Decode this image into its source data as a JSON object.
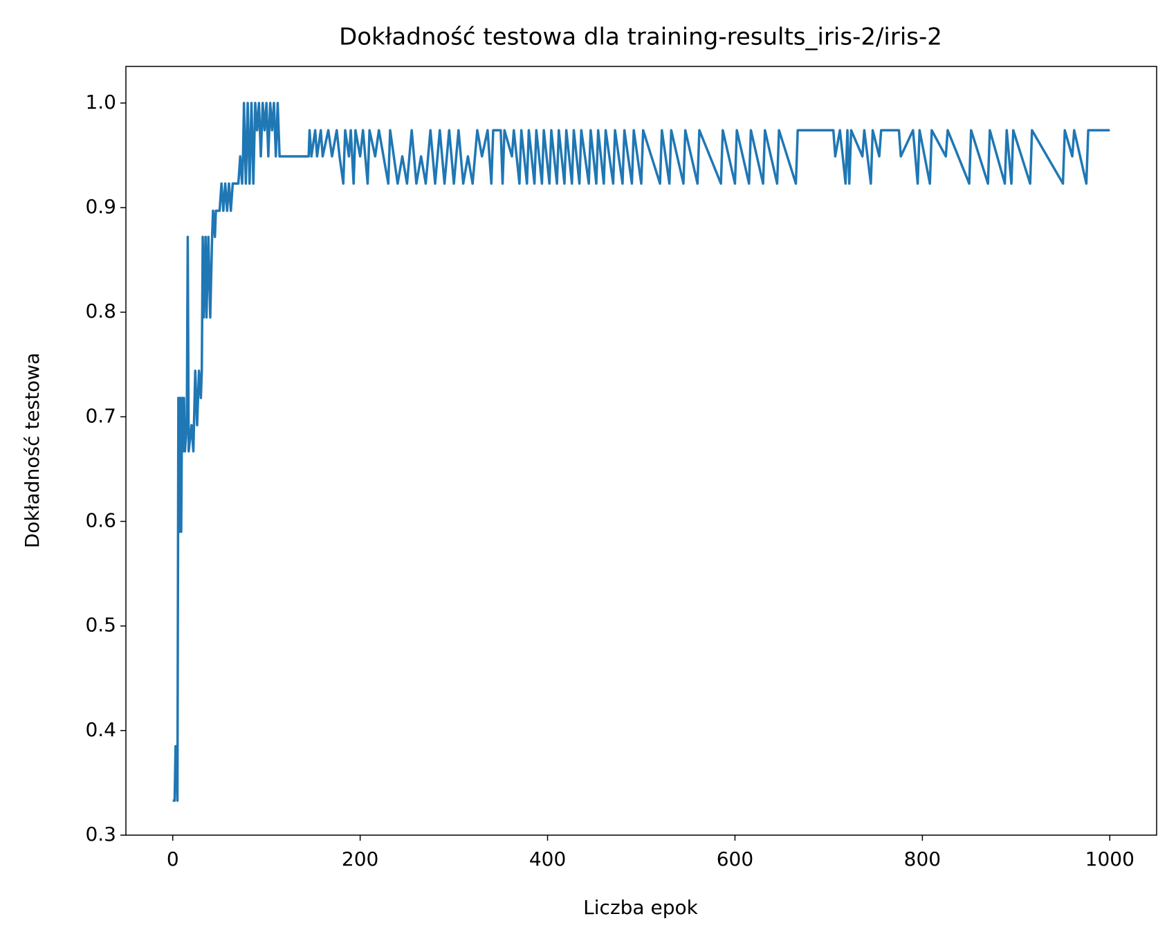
{
  "chart_data": {
    "type": "line",
    "title": "Dokładność testowa dla training-results_iris-2/iris-2",
    "x_label": "Liczba epok",
    "y_label": "Dokładność testowa",
    "xlim": [
      -50,
      1050
    ],
    "ylim": [
      0.3,
      1.035
    ],
    "xticks": [
      0,
      200,
      400,
      600,
      800,
      1000
    ],
    "yticks": [
      0.3,
      0.4,
      0.5,
      0.6,
      0.7,
      0.8,
      0.9,
      {
        "value": 1,
        "label": "1.0"
      }
    ],
    "grid": false,
    "series": [
      {
        "color": "#1f77b4",
        "x": [
          0,
          2,
          3,
          4,
          5,
          6,
          7,
          8,
          9,
          10,
          11,
          12,
          13,
          15,
          16,
          17,
          20,
          22,
          24,
          26,
          28,
          30,
          31,
          32,
          33,
          35,
          36,
          38,
          40,
          42,
          43,
          45,
          46,
          50,
          52,
          54,
          56,
          58,
          60,
          62,
          64,
          70,
          72,
          74,
          75,
          76,
          78,
          80,
          82,
          84,
          86,
          88,
          90,
          92,
          94,
          96,
          98,
          100,
          102,
          104,
          106,
          108,
          110,
          112,
          114,
          145,
          146,
          148,
          152,
          154,
          158,
          160,
          166,
          170,
          175,
          178,
          182,
          184,
          188,
          190,
          193,
          195,
          200,
          203,
          208,
          210,
          216,
          220,
          230,
          232,
          240,
          245,
          250,
          255,
          260,
          265,
          270,
          275,
          280,
          285,
          290,
          295,
          300,
          305,
          310,
          315,
          320,
          325,
          330,
          336,
          340,
          342,
          350,
          352,
          354,
          362,
          364,
          370,
          372,
          378,
          380,
          386,
          388,
          394,
          396,
          402,
          404,
          410,
          412,
          418,
          420,
          426,
          428,
          434,
          436,
          444,
          446,
          452,
          454,
          460,
          462,
          470,
          472,
          480,
          482,
          490,
          492,
          500,
          502,
          520,
          522,
          530,
          532,
          545,
          547,
          560,
          562,
          585,
          587,
          600,
          602,
          615,
          617,
          630,
          632,
          645,
          647,
          665,
          667,
          705,
          707,
          712,
          715,
          718,
          720,
          722,
          724,
          736,
          738,
          745,
          747,
          754,
          756,
          775,
          777,
          790,
          795,
          797,
          808,
          810,
          825,
          827,
          850,
          852,
          870,
          872,
          888,
          890,
          895,
          897,
          915,
          917,
          950,
          952,
          960,
          962,
          975,
          977,
          1000
        ],
        "values": [
          0.333,
          0.333,
          0.385,
          0.385,
          0.333,
          0.718,
          0.59,
          0.718,
          0.59,
          0.718,
          0.667,
          0.718,
          0.667,
          0.692,
          0.872,
          0.667,
          0.692,
          0.667,
          0.744,
          0.692,
          0.744,
          0.718,
          0.744,
          0.872,
          0.795,
          0.872,
          0.795,
          0.872,
          0.795,
          0.872,
          0.897,
          0.872,
          0.897,
          0.897,
          0.923,
          0.897,
          0.923,
          0.897,
          0.923,
          0.897,
          0.923,
          0.923,
          0.949,
          0.923,
          0.949,
          1.0,
          0.923,
          1.0,
          0.923,
          1.0,
          0.923,
          1.0,
          0.974,
          1.0,
          0.949,
          1.0,
          0.974,
          1.0,
          0.949,
          1.0,
          0.974,
          1.0,
          0.949,
          1.0,
          0.949,
          0.949,
          0.974,
          0.949,
          0.974,
          0.949,
          0.974,
          0.949,
          0.974,
          0.949,
          0.974,
          0.949,
          0.923,
          0.974,
          0.949,
          0.974,
          0.923,
          0.974,
          0.949,
          0.974,
          0.923,
          0.974,
          0.949,
          0.974,
          0.923,
          0.974,
          0.923,
          0.949,
          0.923,
          0.974,
          0.923,
          0.949,
          0.923,
          0.974,
          0.923,
          0.974,
          0.923,
          0.974,
          0.923,
          0.974,
          0.923,
          0.949,
          0.923,
          0.974,
          0.949,
          0.974,
          0.923,
          0.974,
          0.974,
          0.923,
          0.974,
          0.949,
          0.974,
          0.923,
          0.974,
          0.923,
          0.974,
          0.923,
          0.974,
          0.923,
          0.974,
          0.923,
          0.974,
          0.923,
          0.974,
          0.923,
          0.974,
          0.923,
          0.974,
          0.923,
          0.974,
          0.923,
          0.974,
          0.923,
          0.974,
          0.923,
          0.974,
          0.923,
          0.974,
          0.923,
          0.974,
          0.923,
          0.974,
          0.923,
          0.974,
          0.923,
          0.974,
          0.923,
          0.974,
          0.923,
          0.974,
          0.923,
          0.974,
          0.923,
          0.974,
          0.923,
          0.974,
          0.923,
          0.974,
          0.923,
          0.974,
          0.923,
          0.974,
          0.923,
          0.974,
          0.974,
          0.949,
          0.974,
          0.949,
          0.923,
          0.974,
          0.923,
          0.974,
          0.949,
          0.974,
          0.923,
          0.974,
          0.949,
          0.974,
          0.974,
          0.949,
          0.974,
          0.923,
          0.974,
          0.923,
          0.974,
          0.949,
          0.974,
          0.923,
          0.974,
          0.923,
          0.974,
          0.923,
          0.974,
          0.923,
          0.974,
          0.923,
          0.974,
          0.923,
          0.974,
          0.949,
          0.974,
          0.923,
          0.974,
          0.974
        ]
      }
    ]
  }
}
